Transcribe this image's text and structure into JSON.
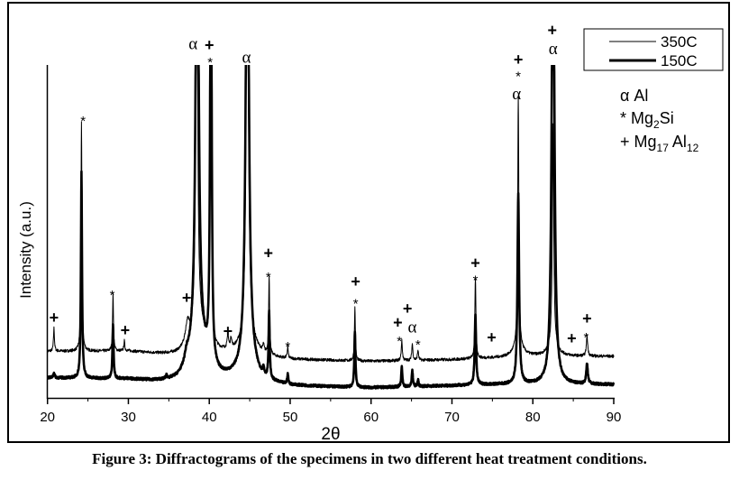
{
  "caption": "Figure 3: Diffractograms of the specimens in two different heat treatment conditions.",
  "chart_data": {
    "type": "line",
    "title": "",
    "xlabel": "2θ",
    "ylabel": "Intensity (a.u.)",
    "xlim": [
      20,
      90
    ],
    "ylim": [
      0,
      100
    ],
    "xticks": [
      20,
      30,
      40,
      50,
      60,
      70,
      80,
      90
    ],
    "xtick_labels": [
      "20",
      "30",
      "40",
      "50",
      "60",
      "70",
      "80",
      "90"
    ],
    "minor_xtick_step": 5,
    "grid": false,
    "legend_position": "top-right",
    "peak_model": "baseline + lorentzian peaks [position 2θ, height above baseline, half-width]",
    "series": [
      {
        "name": "350C",
        "style": "thin",
        "color": "#000000",
        "baseline": [
          [
            20,
            14
          ],
          [
            30,
            14
          ],
          [
            36,
            12.5
          ],
          [
            42,
            13
          ],
          [
            50,
            11.5
          ],
          [
            60,
            11
          ],
          [
            70,
            11.5
          ],
          [
            80,
            12.5
          ],
          [
            90,
            12.5
          ]
        ],
        "peaks": [
          [
            20.8,
            7,
            0.07
          ],
          [
            24.2,
            69,
            0.07
          ],
          [
            28.1,
            17,
            0.07
          ],
          [
            29.5,
            3,
            0.07
          ],
          [
            37.3,
            6,
            0.3
          ],
          [
            38.45,
            140,
            0.12
          ],
          [
            38.6,
            10,
            1.0
          ],
          [
            40.2,
            140,
            0.08
          ],
          [
            42.3,
            4,
            0.1
          ],
          [
            42.7,
            3,
            0.1
          ],
          [
            44.7,
            140,
            0.15
          ],
          [
            44.8,
            8,
            0.8
          ],
          [
            46.7,
            2,
            0.1
          ],
          [
            47.4,
            24,
            0.07
          ],
          [
            49.7,
            3.5,
            0.07
          ],
          [
            58.0,
            16,
            0.07
          ],
          [
            63.8,
            6,
            0.08
          ],
          [
            65.1,
            5,
            0.08
          ],
          [
            65.8,
            3,
            0.08
          ],
          [
            72.9,
            24,
            0.08
          ],
          [
            78.2,
            75,
            0.08
          ],
          [
            78.2,
            4,
            0.6
          ],
          [
            82.5,
            66,
            0.1
          ],
          [
            82.5,
            4,
            0.6
          ],
          [
            86.7,
            6,
            0.1
          ]
        ]
      },
      {
        "name": "150C",
        "style": "thick",
        "color": "#000000",
        "baseline": [
          [
            20,
            6
          ],
          [
            30,
            5.5
          ],
          [
            36,
            4
          ],
          [
            43,
            5
          ],
          [
            50,
            3.5
          ],
          [
            60,
            3
          ],
          [
            75,
            4
          ],
          [
            90,
            4
          ]
        ],
        "peaks": [
          [
            20.8,
            1.5,
            0.1
          ],
          [
            24.2,
            62,
            0.08
          ],
          [
            28.1,
            16,
            0.08
          ],
          [
            34.7,
            1,
            0.1
          ],
          [
            37.2,
            3,
            0.3
          ],
          [
            38.5,
            160,
            0.2
          ],
          [
            38.6,
            12,
            1.2
          ],
          [
            40.2,
            160,
            0.1
          ],
          [
            44.7,
            160,
            0.2
          ],
          [
            44.8,
            10,
            0.8
          ],
          [
            46.7,
            2,
            0.1
          ],
          [
            47.4,
            20,
            0.08
          ],
          [
            49.7,
            3,
            0.08
          ],
          [
            58.0,
            17,
            0.08
          ],
          [
            63.8,
            6,
            0.08
          ],
          [
            65.1,
            5,
            0.08
          ],
          [
            65.8,
            2,
            0.08
          ],
          [
            72.9,
            21,
            0.1
          ],
          [
            78.2,
            57,
            0.12
          ],
          [
            82.5,
            160,
            0.18
          ],
          [
            86.7,
            6,
            0.12
          ]
        ]
      }
    ],
    "annotations": [
      {
        "x": 20.8,
        "y": 22.5,
        "text": "+"
      },
      {
        "x": 24.4,
        "y": 84,
        "text": "*"
      },
      {
        "x": 28.0,
        "y": 31.5,
        "text": "*"
      },
      {
        "x": 29.6,
        "y": 18.8,
        "text": "+"
      },
      {
        "x": 37.2,
        "y": 28.5,
        "text": "+"
      },
      {
        "x": 38.0,
        "y": 105,
        "text": "α"
      },
      {
        "x": 40.0,
        "y": 104.6,
        "text": "+"
      },
      {
        "x": 40.1,
        "y": 101.6,
        "text": "*"
      },
      {
        "x": 42.3,
        "y": 18.5,
        "text": "+"
      },
      {
        "x": 44.6,
        "y": 101,
        "text": "α"
      },
      {
        "x": 47.3,
        "y": 42,
        "text": "+"
      },
      {
        "x": 47.3,
        "y": 37,
        "text": "*"
      },
      {
        "x": 49.7,
        "y": 16,
        "text": "*"
      },
      {
        "x": 58.1,
        "y": 33.4,
        "text": "+"
      },
      {
        "x": 58.1,
        "y": 29,
        "text": "*"
      },
      {
        "x": 63.3,
        "y": 21,
        "text": "+"
      },
      {
        "x": 63.5,
        "y": 17.7,
        "text": "*"
      },
      {
        "x": 64.5,
        "y": 21,
        "text": "+"
      },
      {
        "x": 65.1,
        "y": 19.3,
        "text": "α"
      },
      {
        "x": 65.8,
        "y": 16.6,
        "text": "*"
      },
      {
        "x": 72.9,
        "y": 39,
        "text": "+"
      },
      {
        "x": 72.9,
        "y": 36,
        "text": "*"
      },
      {
        "x": 74.9,
        "y": 16.6,
        "text": "+"
      },
      {
        "x": 78.2,
        "y": 97,
        "text": "+"
      },
      {
        "x": 78.2,
        "y": 93.5,
        "text": "*"
      },
      {
        "x": 78.0,
        "y": 90,
        "text": "α"
      },
      {
        "x": 82.4,
        "y": 106,
        "text": "+"
      },
      {
        "x": 82.5,
        "y": 103.5,
        "text": "α"
      },
      {
        "x": 84.8,
        "y": 16.3,
        "text": "+"
      },
      {
        "x": 86.7,
        "y": 22.3,
        "text": "+"
      },
      {
        "x": 86.6,
        "y": 18.8,
        "text": "*"
      }
    ],
    "phase_key": [
      {
        "symbol": "α",
        "segments": [
          {
            "t": "Al",
            "sub": false
          }
        ]
      },
      {
        "symbol": "*",
        "segments": [
          {
            "t": "Mg",
            "sub": false
          },
          {
            "t": "2",
            "sub": true
          },
          {
            "t": "Si",
            "sub": false
          }
        ]
      },
      {
        "symbol": "+",
        "segments": [
          {
            "t": "Mg",
            "sub": false
          },
          {
            "t": "17",
            "sub": true
          },
          {
            "t": " Al",
            "sub": false
          },
          {
            "t": "12",
            "sub": true
          }
        ]
      }
    ]
  }
}
